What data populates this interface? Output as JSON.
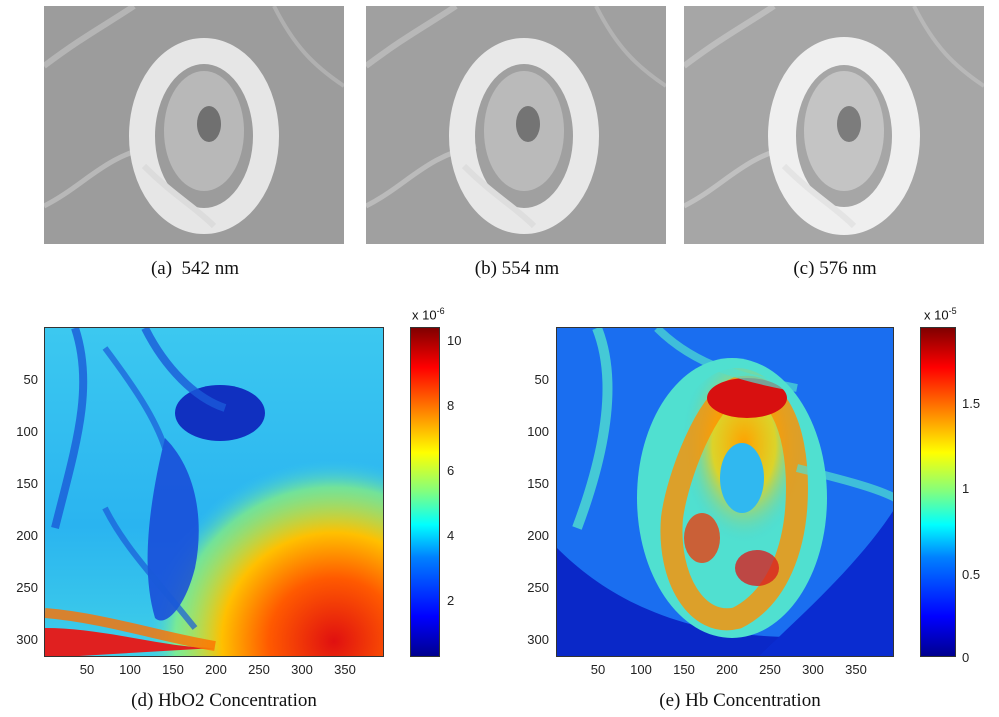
{
  "panels_top": [
    {
      "caption": "(a)  542 nm"
    },
    {
      "caption": "(b) 554 nm"
    },
    {
      "caption": "(c) 576 nm"
    }
  ],
  "panel_d": {
    "caption": "(d) HbO2 Concentration",
    "y_ticks": [
      "50",
      "100",
      "150",
      "200",
      "250",
      "300"
    ],
    "x_ticks": [
      "50",
      "100",
      "150",
      "200",
      "250",
      "300",
      "350"
    ],
    "colorbar_ticks": [
      "2",
      "4",
      "6",
      "8",
      "10"
    ],
    "colorbar_exp_base": "x 10",
    "colorbar_exp_power": "-6"
  },
  "panel_e": {
    "caption": "(e) Hb Concentration",
    "y_ticks": [
      "50",
      "100",
      "150",
      "200",
      "250",
      "300"
    ],
    "x_ticks": [
      "50",
      "100",
      "150",
      "200",
      "250",
      "300",
      "350"
    ],
    "colorbar_ticks": [
      "0",
      "0.5",
      "1",
      "1.5"
    ],
    "colorbar_exp_base": "x 10",
    "colorbar_exp_power": "-5"
  }
}
